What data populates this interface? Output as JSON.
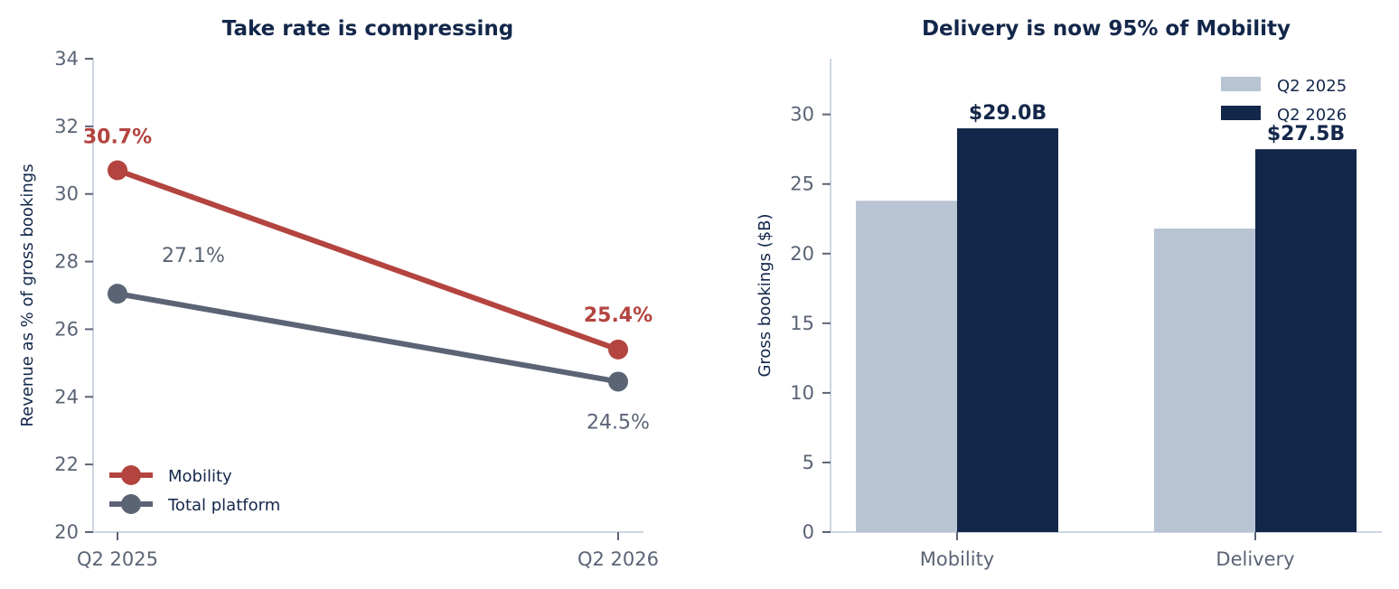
{
  "colors": {
    "mobility": "#b3443f",
    "total": "#5a6475",
    "q2_2025": "#b8c3d3",
    "q2_2026": "#13274a",
    "title": "#13274a",
    "tick": "#5a6475",
    "axis": "#cdd6e2"
  },
  "chart_data": [
    {
      "type": "line",
      "title": "Take rate is compressing",
      "xlabel": "",
      "ylabel": "Revenue as % of gross bookings",
      "x": [
        "Q2 2025",
        "Q2 2026"
      ],
      "ylim": [
        20,
        34
      ],
      "yticks": [
        20,
        22,
        24,
        26,
        28,
        30,
        32,
        34
      ],
      "grid": false,
      "legend_position": "bottom-left",
      "series": [
        {
          "name": "Mobility",
          "values": [
            30.7,
            25.4
          ],
          "labels": [
            "30.7%",
            "25.4%"
          ]
        },
        {
          "name": "Total platform",
          "values": [
            27.05,
            24.45
          ],
          "labels": [
            "27.1%",
            "24.5%"
          ]
        }
      ]
    },
    {
      "type": "bar",
      "title": "Delivery is now 95% of Mobility",
      "xlabel": "",
      "ylabel": "Gross bookings ($B)",
      "categories": [
        "Mobility",
        "Delivery"
      ],
      "ylim": [
        0,
        34
      ],
      "yticks": [
        0,
        5,
        10,
        15,
        20,
        25,
        30
      ],
      "grid": false,
      "legend_position": "top-right",
      "series": [
        {
          "name": "Q2 2025",
          "values": [
            23.8,
            21.8
          ],
          "labels": [
            "",
            ""
          ]
        },
        {
          "name": "Q2 2026",
          "values": [
            29.0,
            27.5
          ],
          "labels": [
            "$29.0B",
            "$27.5B"
          ]
        }
      ]
    }
  ]
}
